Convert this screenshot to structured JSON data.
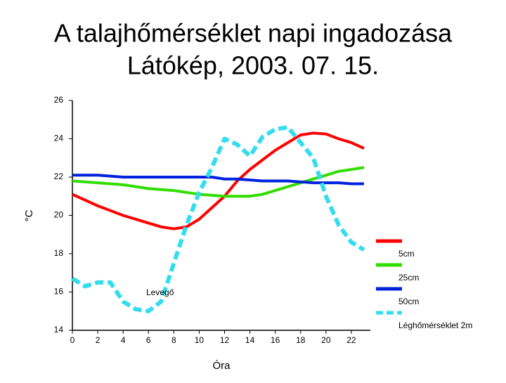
{
  "chart_data": {
    "type": "line",
    "title": "A talajhőmérséklet napi ingadozása",
    "subtitle": "Látókép, 2003. 07. 15.",
    "xlabel": "Óra",
    "ylabel": "°C",
    "annotation": "Levegő",
    "x": [
      0,
      1,
      2,
      3,
      4,
      5,
      6,
      7,
      8,
      9,
      10,
      11,
      12,
      13,
      14,
      15,
      16,
      17,
      18,
      19,
      20,
      21,
      22,
      23
    ],
    "xlim": [
      0,
      23.5
    ],
    "xticks": [
      0,
      2,
      4,
      6,
      8,
      10,
      12,
      14,
      16,
      18,
      20,
      22
    ],
    "ylim": [
      14,
      26
    ],
    "yticks": [
      14,
      16,
      18,
      20,
      22,
      24,
      26
    ],
    "series": [
      {
        "name": "5cm",
        "color": "#ff0000",
        "dashed": false,
        "values": [
          21.1,
          20.8,
          20.5,
          20.25,
          20.0,
          19.8,
          19.6,
          19.4,
          19.3,
          19.4,
          19.8,
          20.4,
          21.0,
          21.8,
          22.4,
          22.9,
          23.4,
          23.8,
          24.2,
          24.3,
          24.25,
          24.0,
          23.8,
          23.5
        ]
      },
      {
        "name": "25cm",
        "color": "#33dd00",
        "dashed": false,
        "values": [
          21.8,
          21.75,
          21.7,
          21.65,
          21.6,
          21.5,
          21.4,
          21.35,
          21.3,
          21.2,
          21.1,
          21.05,
          21.0,
          21.0,
          21.0,
          21.1,
          21.3,
          21.5,
          21.7,
          21.9,
          22.1,
          22.3,
          22.4,
          22.5
        ]
      },
      {
        "name": "50cm",
        "color": "#0022dd",
        "dashed": false,
        "values": [
          22.1,
          22.1,
          22.1,
          22.05,
          22.0,
          22.0,
          22.0,
          22.0,
          22.0,
          22.0,
          22.0,
          22.0,
          21.9,
          21.9,
          21.85,
          21.8,
          21.8,
          21.8,
          21.75,
          21.7,
          21.7,
          21.7,
          21.65,
          21.65
        ]
      },
      {
        "name": "Léghőmérséklet 2m",
        "color": "#33ddee",
        "dashed": true,
        "values": [
          16.7,
          16.3,
          16.5,
          16.5,
          15.5,
          15.1,
          15.0,
          15.5,
          17.5,
          19.5,
          21.2,
          22.5,
          24.0,
          23.7,
          23.1,
          24.1,
          24.5,
          24.6,
          23.8,
          23.0,
          21.0,
          19.5,
          18.6,
          18.2
        ]
      }
    ]
  }
}
